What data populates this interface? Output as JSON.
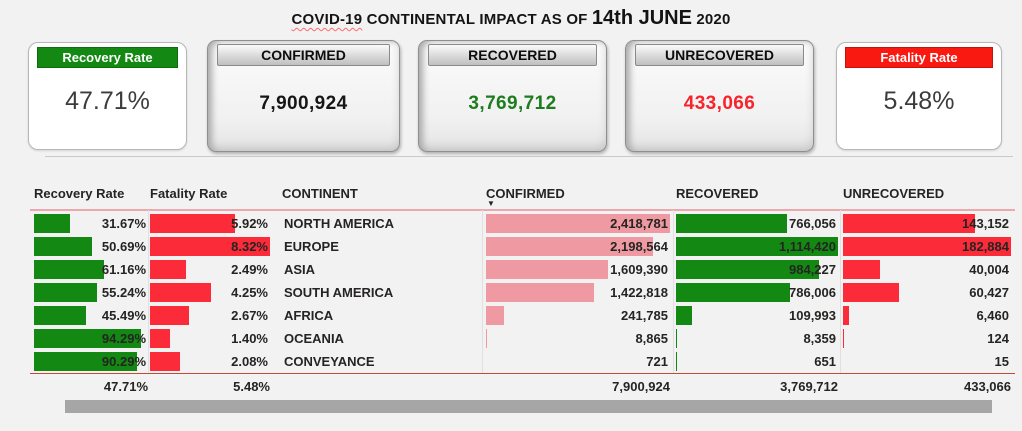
{
  "title": {
    "word": "COVID-19",
    "rest": " CONTINENTAL IMPACT AS OF ",
    "date": "14th JUNE",
    "year": " 2020"
  },
  "chart_data": {
    "type": "table",
    "title": "COVID-19 CONTINENTAL IMPACT AS OF 14th JUNE 2020",
    "kpis": [
      {
        "label": "Recovery Rate",
        "value": "47.71%",
        "accent": "#138913"
      },
      {
        "label": "CONFIRMED",
        "value": "7,900,924",
        "accent": "#161616"
      },
      {
        "label": "RECOVERED",
        "value": "3,769,712",
        "accent": "#1d7d1d"
      },
      {
        "label": "UNRECOVERED",
        "value": "433,066",
        "accent": "#f8232b"
      },
      {
        "label": "Fatality Rate",
        "value": "5.48%",
        "accent": "#f91910"
      }
    ],
    "columns": [
      "Recovery Rate",
      "Fatality Rate",
      "CONTINENT",
      "CONFIRMED",
      "RECOVERED",
      "UNRECOVERED"
    ],
    "sort": {
      "column": "CONFIRMED",
      "order": "descending"
    },
    "rows": [
      {
        "continent": "NORTH AMERICA",
        "recovery_rate": 31.67,
        "fatality_rate": 5.92,
        "confirmed": 2418781,
        "recovered": 766056,
        "unrecovered": 143152
      },
      {
        "continent": "EUROPE",
        "recovery_rate": 50.69,
        "fatality_rate": 8.32,
        "confirmed": 2198564,
        "recovered": 1114420,
        "unrecovered": 182884
      },
      {
        "continent": "ASIA",
        "recovery_rate": 61.16,
        "fatality_rate": 2.49,
        "confirmed": 1609390,
        "recovered": 984227,
        "unrecovered": 40004
      },
      {
        "continent": "SOUTH AMERICA",
        "recovery_rate": 55.24,
        "fatality_rate": 4.25,
        "confirmed": 1422818,
        "recovered": 786006,
        "unrecovered": 60427
      },
      {
        "continent": "AFRICA",
        "recovery_rate": 45.49,
        "fatality_rate": 2.67,
        "confirmed": 241785,
        "recovered": 109993,
        "unrecovered": 6460
      },
      {
        "continent": "OCEANIA",
        "recovery_rate": 94.29,
        "fatality_rate": 1.4,
        "confirmed": 8865,
        "recovered": 8359,
        "unrecovered": 124
      },
      {
        "continent": "CONVEYANCE",
        "recovery_rate": 90.29,
        "fatality_rate": 2.08,
        "confirmed": 721,
        "recovered": 651,
        "unrecovered": 15
      }
    ],
    "totals": {
      "recovery_rate": 47.71,
      "fatality_rate": 5.48,
      "confirmed": 7900924,
      "recovered": 3769712,
      "unrecovered": 433066
    },
    "bar_colors": {
      "recovery": "#138913",
      "fatality": "#fb2b3a",
      "confirmed": "#ef9aa2",
      "recovered": "#138913",
      "unrecovered": "#fb2b3a"
    },
    "layout": {
      "grid": "off",
      "bars": "inline data bars, left-aligned, scaled to column max; recovery bars scaled to 100%"
    }
  }
}
